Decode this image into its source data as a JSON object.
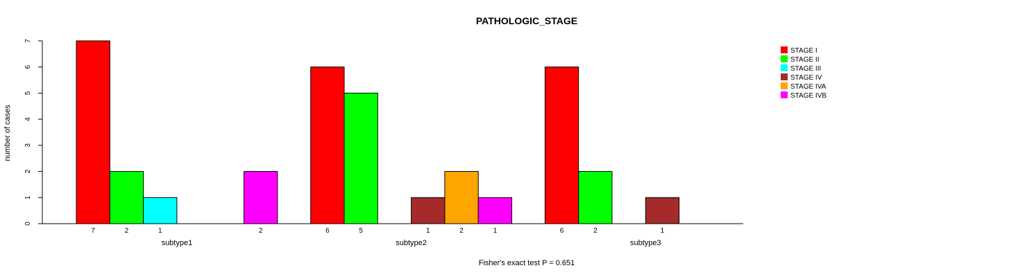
{
  "chart_data": {
    "type": "bar",
    "title": "PATHOLOGIC_STAGE",
    "ylabel": "number of cases",
    "footer": "Fisher's exact test P = 0.651",
    "ylim": [
      0,
      7
    ],
    "yticks": [
      0,
      1,
      2,
      3,
      4,
      5,
      6,
      7
    ],
    "categories": [
      "subtype1",
      "subtype2",
      "subtype3"
    ],
    "legend_position": "top-right",
    "series": [
      {
        "name": "STAGE I",
        "color": "#ff0000",
        "values": [
          7,
          6,
          6
        ]
      },
      {
        "name": "STAGE II",
        "color": "#00ff00",
        "values": [
          2,
          5,
          2
        ]
      },
      {
        "name": "STAGE III",
        "color": "#00ffff",
        "values": [
          1,
          0,
          0
        ]
      },
      {
        "name": "STAGE IV",
        "color": "#a52a2a",
        "values": [
          0,
          1,
          1
        ]
      },
      {
        "name": "STAGE IVA",
        "color": "#ffa500",
        "values": [
          0,
          2,
          0
        ]
      },
      {
        "name": "STAGE IVB",
        "color": "#ff00ff",
        "values": [
          2,
          1,
          0
        ]
      }
    ]
  }
}
